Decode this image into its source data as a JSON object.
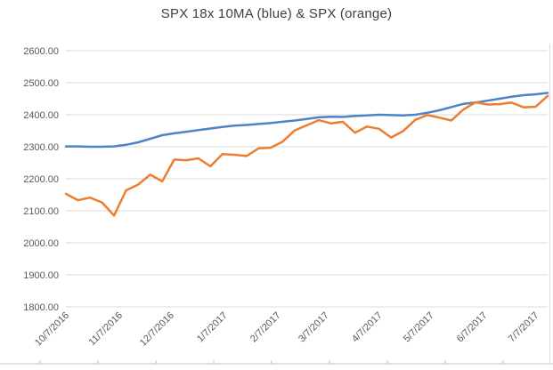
{
  "chart_data": {
    "type": "line",
    "title": "SPX 18x 10MA (blue) & SPX (orange)",
    "grid": true,
    "legend_position": "none",
    "y_axis": {
      "min": 1800,
      "max": 2600,
      "tick_step": 100,
      "tick_labels": [
        "2600.00",
        "2500.00",
        "2400.00",
        "2300.00",
        "2200.00",
        "2100.00",
        "2000.00",
        "1900.00",
        "1800.00"
      ]
    },
    "x_axis": {
      "tick_labels": [
        "10/7/2016",
        "11/7/2016",
        "12/7/2016",
        "1/7/2017",
        "2/7/2017",
        "3/7/2017",
        "4/7/2017",
        "5/7/2017",
        "6/7/2017",
        "7/7/2017"
      ],
      "tick_point_positions": [
        0,
        4.43,
        8.71,
        13.14,
        17.57,
        21.57,
        26,
        30.29,
        34.71,
        39
      ],
      "label_rotation_deg": -45
    },
    "series": [
      {
        "name": "SPX 18x 10MA",
        "color": "#4C84C8",
        "values": [
          2301,
          2301,
          2300,
          2300,
          2301,
          2306,
          2314,
          2325,
          2336,
          2342,
          2347,
          2352,
          2357,
          2362,
          2366,
          2368,
          2371,
          2374,
          2378,
          2382,
          2387,
          2392,
          2394,
          2393,
          2396,
          2398,
          2400,
          2399,
          2398,
          2400,
          2406,
          2414,
          2424,
          2434,
          2438,
          2444,
          2450,
          2456,
          2461,
          2464,
          2468
        ]
      },
      {
        "name": "SPX",
        "color": "#ED7D31",
        "values": [
          2153,
          2133,
          2141,
          2126,
          2085,
          2164,
          2182,
          2213,
          2192,
          2260,
          2258,
          2264,
          2239,
          2277,
          2275,
          2271,
          2295,
          2297,
          2316,
          2351,
          2367,
          2383,
          2373,
          2378,
          2344,
          2363,
          2356,
          2329,
          2349,
          2384,
          2399,
          2391,
          2382,
          2416,
          2439,
          2432,
          2433,
          2438,
          2423,
          2425,
          2459
        ]
      }
    ]
  },
  "styles": {
    "grid_color": "#D9D9D9",
    "axis_text_color": "#595959",
    "title_color": "#404040",
    "sheet_edge_color": "#D9D9D9",
    "sheet_tick_color": "#BFBFBF",
    "background": "#FFFFFF"
  }
}
